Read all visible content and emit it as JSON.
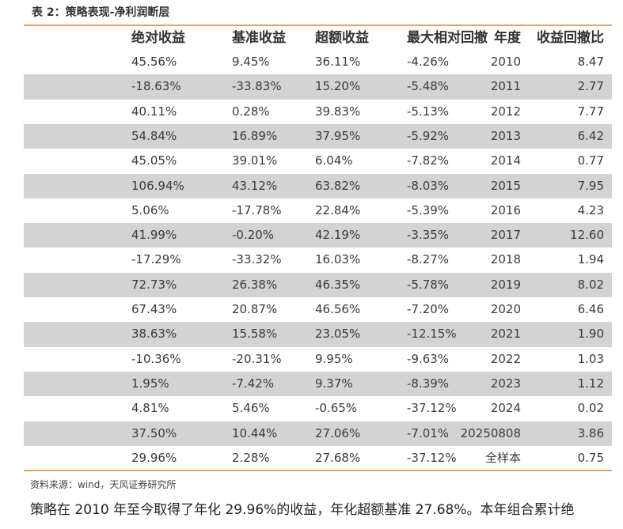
{
  "title": "表 2：策略表现-净利润断层",
  "table": {
    "header": [
      "年度",
      "绝对收益",
      "基准收益",
      "超额收益",
      "最大相对回撤",
      "收益回撤比"
    ],
    "rows": [
      [
        "2010",
        "45.56%",
        "9.45%",
        "36.11%",
        "-4.26%",
        "8.47"
      ],
      [
        "2011",
        "-18.63%",
        "-33.83%",
        "15.20%",
        "-5.48%",
        "2.77"
      ],
      [
        "2012",
        "40.11%",
        "0.28%",
        "39.83%",
        "-5.13%",
        "7.77"
      ],
      [
        "2013",
        "54.84%",
        "16.89%",
        "37.95%",
        "-5.92%",
        "6.42"
      ],
      [
        "2014",
        "45.05%",
        "39.01%",
        "6.04%",
        "-7.82%",
        "0.77"
      ],
      [
        "2015",
        "106.94%",
        "43.12%",
        "63.82%",
        "-8.03%",
        "7.95"
      ],
      [
        "2016",
        "5.06%",
        "-17.78%",
        "22.84%",
        "-5.39%",
        "4.23"
      ],
      [
        "2017",
        "41.99%",
        "-0.20%",
        "42.19%",
        "-3.35%",
        "12.60"
      ],
      [
        "2018",
        "-17.29%",
        "-33.32%",
        "16.03%",
        "-8.27%",
        "1.94"
      ],
      [
        "2019",
        "72.73%",
        "26.38%",
        "46.35%",
        "-5.78%",
        "8.02"
      ],
      [
        "2020",
        "67.43%",
        "20.87%",
        "46.56%",
        "-7.20%",
        "6.46"
      ],
      [
        "2021",
        "38.63%",
        "15.58%",
        "23.05%",
        "-12.15%",
        "1.90"
      ],
      [
        "2022",
        "-10.36%",
        "-20.31%",
        "9.95%",
        "-9.63%",
        "1.03"
      ],
      [
        "2023",
        "1.95%",
        "-7.42%",
        "9.37%",
        "-8.39%",
        "1.12"
      ],
      [
        "2024",
        "4.81%",
        "5.46%",
        "-0.65%",
        "-37.12%",
        "0.02"
      ],
      [
        "20250808",
        "37.50%",
        "10.44%",
        "27.06%",
        "-7.01%",
        "3.86"
      ],
      [
        "全样本",
        "29.96%",
        "2.28%",
        "27.68%",
        "-37.12%",
        "0.75"
      ]
    ]
  },
  "source": "资料来源：wind，天风证券研究所",
  "paragraph": "策略在 2010 年至今取得了年化 29.96%的收益，年化超额基准 27.68%。本年组合累计绝"
}
